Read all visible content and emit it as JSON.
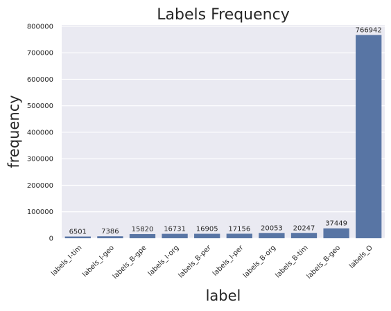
{
  "chart_data": {
    "type": "bar",
    "title": "Labels Frequency",
    "xlabel": "label",
    "ylabel": "frequency",
    "categories": [
      "labels_I-tim",
      "labels_I-geo",
      "labels_B-gpe",
      "labels_I-org",
      "labels_B-per",
      "labels_I-per",
      "labels_B-org",
      "labels_B-tim",
      "labels_B-geo",
      "labels_O"
    ],
    "values": [
      6501,
      7386,
      15820,
      16731,
      16905,
      17156,
      20053,
      20247,
      37449,
      766942
    ],
    "data_labels": [
      "6501",
      "7386",
      "15820",
      "16731",
      "16905",
      "17156",
      "20053",
      "20247",
      "37449",
      "766942"
    ],
    "ylim": [
      0,
      805000
    ],
    "yticks": [
      0,
      100000,
      200000,
      300000,
      400000,
      500000,
      600000,
      700000,
      800000
    ],
    "ytick_labels": [
      "0",
      "100000",
      "200000",
      "300000",
      "400000",
      "500000",
      "600000",
      "700000",
      "800000"
    ],
    "grid": true,
    "colors": {
      "bar": "#5875a4",
      "plot_background": "#eaeaf2",
      "grid": "#ffffff"
    }
  }
}
